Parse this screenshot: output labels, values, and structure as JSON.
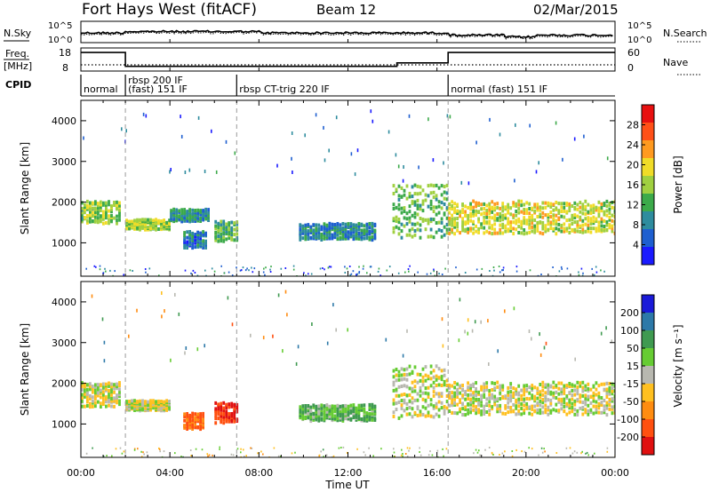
{
  "header": {
    "station": "Fort Hays West (fitACF)",
    "beam": "Beam 12",
    "date": "02/Mar/2015"
  },
  "top_panels": {
    "nsky_label": "N.Sky",
    "nsky_ticks": [
      "10^5",
      "10^0"
    ],
    "nsearch_label": "N.Search",
    "nsearch_ticks": [
      "10^5",
      "10^0"
    ],
    "freq_label": "Freq.",
    "freq_unit": "[MHz]",
    "freq_ticks": [
      "18",
      "8"
    ],
    "nave_label": "Nave",
    "nave_ticks": [
      "60",
      "0"
    ],
    "cpid_label": "CPID",
    "cpid_segments": [
      {
        "start": 0,
        "end": 2,
        "label": "normal"
      },
      {
        "start": 2,
        "end": 7,
        "label": "rbsp 200 IF",
        "label2": "(fast) 151 IF"
      },
      {
        "start": 7,
        "end": 16.5,
        "label": "rbsp CT-trig 220 IF"
      },
      {
        "start": 16.5,
        "end": 24,
        "label": "normal (fast) 151 IF"
      }
    ],
    "freq_steps": [
      {
        "start": 0,
        "end": 2,
        "mhz": 17.5
      },
      {
        "start": 2,
        "end": 14.2,
        "mhz": 10.4
      },
      {
        "start": 14.2,
        "end": 16.5,
        "mhz": 12.2
      },
      {
        "start": 16.5,
        "end": 24,
        "mhz": 17.5
      }
    ]
  },
  "chart_data": [
    {
      "type": "heatmap",
      "title": "Power",
      "ylabel": "Slant Range [km]",
      "xlabel": "",
      "xlim": [
        0,
        24
      ],
      "ylim": [
        180,
        4500
      ],
      "yticks": [
        "1000",
        "2000",
        "3000",
        "4000"
      ],
      "colorbar": {
        "label": "Power [dB]",
        "ticks": [
          "28",
          "24",
          "20",
          "16",
          "12",
          "8",
          "4"
        ],
        "range": [
          0,
          30
        ]
      },
      "echo_regions": [
        {
          "t0": 0.0,
          "t1": 1.8,
          "r0": 1450,
          "r1": 2000,
          "value": 14
        },
        {
          "t0": 2.0,
          "t1": 4.0,
          "r0": 1300,
          "r1": 1550,
          "value": 16
        },
        {
          "t0": 4.0,
          "t1": 5.7,
          "r0": 1500,
          "r1": 1800,
          "value": 8
        },
        {
          "t0": 4.6,
          "t1": 5.6,
          "r0": 850,
          "r1": 1250,
          "value": 6
        },
        {
          "t0": 6.0,
          "t1": 7.0,
          "r0": 1000,
          "r1": 1500,
          "value": 12
        },
        {
          "t0": 9.8,
          "t1": 13.2,
          "r0": 1050,
          "r1": 1450,
          "value": 7
        },
        {
          "t0": 14.0,
          "t1": 16.5,
          "r0": 1100,
          "r1": 2400,
          "value": 12
        },
        {
          "t0": 16.5,
          "t1": 24.0,
          "r0": 1200,
          "r1": 2000,
          "value": 17
        }
      ]
    },
    {
      "type": "heatmap",
      "title": "Velocity",
      "ylabel": "Slant Range [km]",
      "xlabel": "Time UT",
      "xlim": [
        0,
        24
      ],
      "ylim": [
        180,
        4500
      ],
      "xticks": [
        "00:00",
        "04:00",
        "08:00",
        "12:00",
        "16:00",
        "20:00",
        "00:00"
      ],
      "yticks": [
        "1000",
        "2000",
        "3000",
        "4000"
      ],
      "colorbar": {
        "label": "Velocity [m s⁻¹]",
        "ticks": [
          "200",
          "100",
          "50",
          "15",
          "-15",
          "-50",
          "-100",
          "-200"
        ],
        "range": [
          -250,
          250
        ]
      },
      "echo_regions": [
        {
          "t0": 0.0,
          "t1": 1.8,
          "r0": 1400,
          "r1": 2000,
          "value": 0
        },
        {
          "t0": 2.0,
          "t1": 4.0,
          "r0": 1300,
          "r1": 1550,
          "value": 0
        },
        {
          "t0": 4.6,
          "t1": 5.5,
          "r0": 850,
          "r1": 1250,
          "value": -120
        },
        {
          "t0": 6.0,
          "t1": 7.0,
          "r0": 1000,
          "r1": 1500,
          "value": -200
        },
        {
          "t0": 9.8,
          "t1": 13.2,
          "r0": 1050,
          "r1": 1450,
          "value": 50
        },
        {
          "t0": 14.0,
          "t1": 16.5,
          "r0": 1100,
          "r1": 2400,
          "value": 0
        },
        {
          "t0": 16.5,
          "t1": 24.0,
          "r0": 1200,
          "r1": 2000,
          "value": 0
        }
      ]
    }
  ],
  "colors": {
    "power": [
      "#1a1aff",
      "#1e5fd0",
      "#2e8c9e",
      "#3caa4a",
      "#a0d040",
      "#f0dc28",
      "#ff9a20",
      "#ff5018",
      "#e81010"
    ],
    "velocity_pos": [
      "#1a1ad8",
      "#2d79a8",
      "#3f9a50",
      "#66cc33"
    ],
    "velocity_zero": "#b8b8b0",
    "velocity_neg": [
      "#ffc020",
      "#ff8c10",
      "#ff5010",
      "#e01010"
    ]
  }
}
